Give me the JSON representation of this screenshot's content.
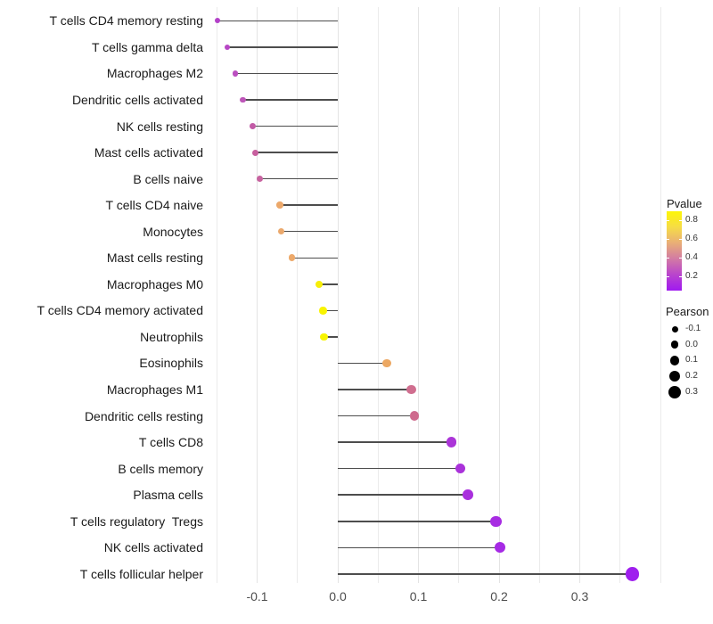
{
  "chart_data": {
    "type": "scatter",
    "variant": "lollipop",
    "title": "",
    "xlabel": "",
    "ylabel": "",
    "x_ticks": [
      "-0.1",
      "0.0",
      "0.1",
      "0.2",
      "0.3"
    ],
    "x_tick_values": [
      -0.1,
      0.0,
      0.1,
      0.2,
      0.3
    ],
    "xlim": [
      -0.175,
      0.42
    ],
    "grid": "vertical-only, every 0.05",
    "points": [
      {
        "label": "T cells CD4 memory resting",
        "pearson": -0.149,
        "pvalue": 0.17,
        "color": "#b341c8"
      },
      {
        "label": "T cells gamma delta",
        "pearson": -0.137,
        "pvalue": 0.19,
        "color": "#b747c5"
      },
      {
        "label": "Macrophages M2",
        "pearson": -0.127,
        "pvalue": 0.22,
        "color": "#bb4fc0"
      },
      {
        "label": "Dendritic cells activated",
        "pearson": -0.118,
        "pvalue": 0.24,
        "color": "#bd55b8"
      },
      {
        "label": "NK cells resting",
        "pearson": -0.106,
        "pvalue": 0.29,
        "color": "#c25ba6"
      },
      {
        "label": "Mast cells activated",
        "pearson": -0.102,
        "pvalue": 0.31,
        "color": "#c75f9e"
      },
      {
        "label": "B cells naive",
        "pearson": -0.097,
        "pvalue": 0.33,
        "color": "#c763a0"
      },
      {
        "label": "T cells CD4 naive",
        "pearson": -0.072,
        "pvalue": 0.6,
        "color": "#eca86a"
      },
      {
        "label": "Monocytes",
        "pearson": -0.07,
        "pvalue": 0.6,
        "color": "#eba96d"
      },
      {
        "label": "Mast cells resting",
        "pearson": -0.057,
        "pvalue": 0.62,
        "color": "#eda96a"
      },
      {
        "label": "Macrophages M0",
        "pearson": -0.023,
        "pvalue": 0.85,
        "color": "#f7ee08"
      },
      {
        "label": "T cells CD4 memory activated",
        "pearson": -0.018,
        "pvalue": 0.87,
        "color": "#f9f400"
      },
      {
        "label": "Neutrophils",
        "pearson": -0.017,
        "pvalue": 0.88,
        "color": "#f8f500"
      },
      {
        "label": "Eosinophils",
        "pearson": 0.061,
        "pvalue": 0.59,
        "color": "#eca863"
      },
      {
        "label": "Macrophages M1",
        "pearson": 0.091,
        "pvalue": 0.41,
        "color": "#d06e8f"
      },
      {
        "label": "Dendritic cells resting",
        "pearson": 0.095,
        "pvalue": 0.4,
        "color": "#ce6a8d"
      },
      {
        "label": "T cells CD8",
        "pearson": 0.141,
        "pvalue": 0.08,
        "color": "#ab35d8"
      },
      {
        "label": "B cells memory",
        "pearson": 0.152,
        "pvalue": 0.07,
        "color": "#aa32da"
      },
      {
        "label": "Plasma cells",
        "pearson": 0.161,
        "pvalue": 0.06,
        "color": "#a92fdd"
      },
      {
        "label": "T cells regulatory  Tregs",
        "pearson": 0.196,
        "pvalue": 0.04,
        "color": "#a72ce2"
      },
      {
        "label": "NK cells activated",
        "pearson": 0.201,
        "pvalue": 0.03,
        "color": "#a62ae5"
      },
      {
        "label": "T cells follicular helper",
        "pearson": 0.365,
        "pvalue": 0.01,
        "color": "#9f1fee"
      }
    ],
    "legend": {
      "pvalue": {
        "title": "Pvalue",
        "ticks": [
          "0.8",
          "0.6",
          "0.4",
          "0.2"
        ],
        "gradient_stops_bottom_to_top": [
          "#a019f0",
          "#b944cd",
          "#d27aa4",
          "#e9ae77",
          "#f6dc46",
          "#fdf607"
        ]
      },
      "pearson": {
        "title": "Pearson",
        "sizes": [
          "-0.1",
          "0.0",
          "0.1",
          "0.2",
          "0.3"
        ],
        "size_values": [
          -0.1,
          0.0,
          0.1,
          0.2,
          0.3
        ],
        "dot_color": "#000000"
      }
    },
    "style": {
      "stem_color": "#4d4d4d",
      "grid_color": "#ebebeb",
      "axis_text_color": "#4d4d4d",
      "label_color": "#1a1a1a",
      "background": "#ffffff"
    }
  }
}
